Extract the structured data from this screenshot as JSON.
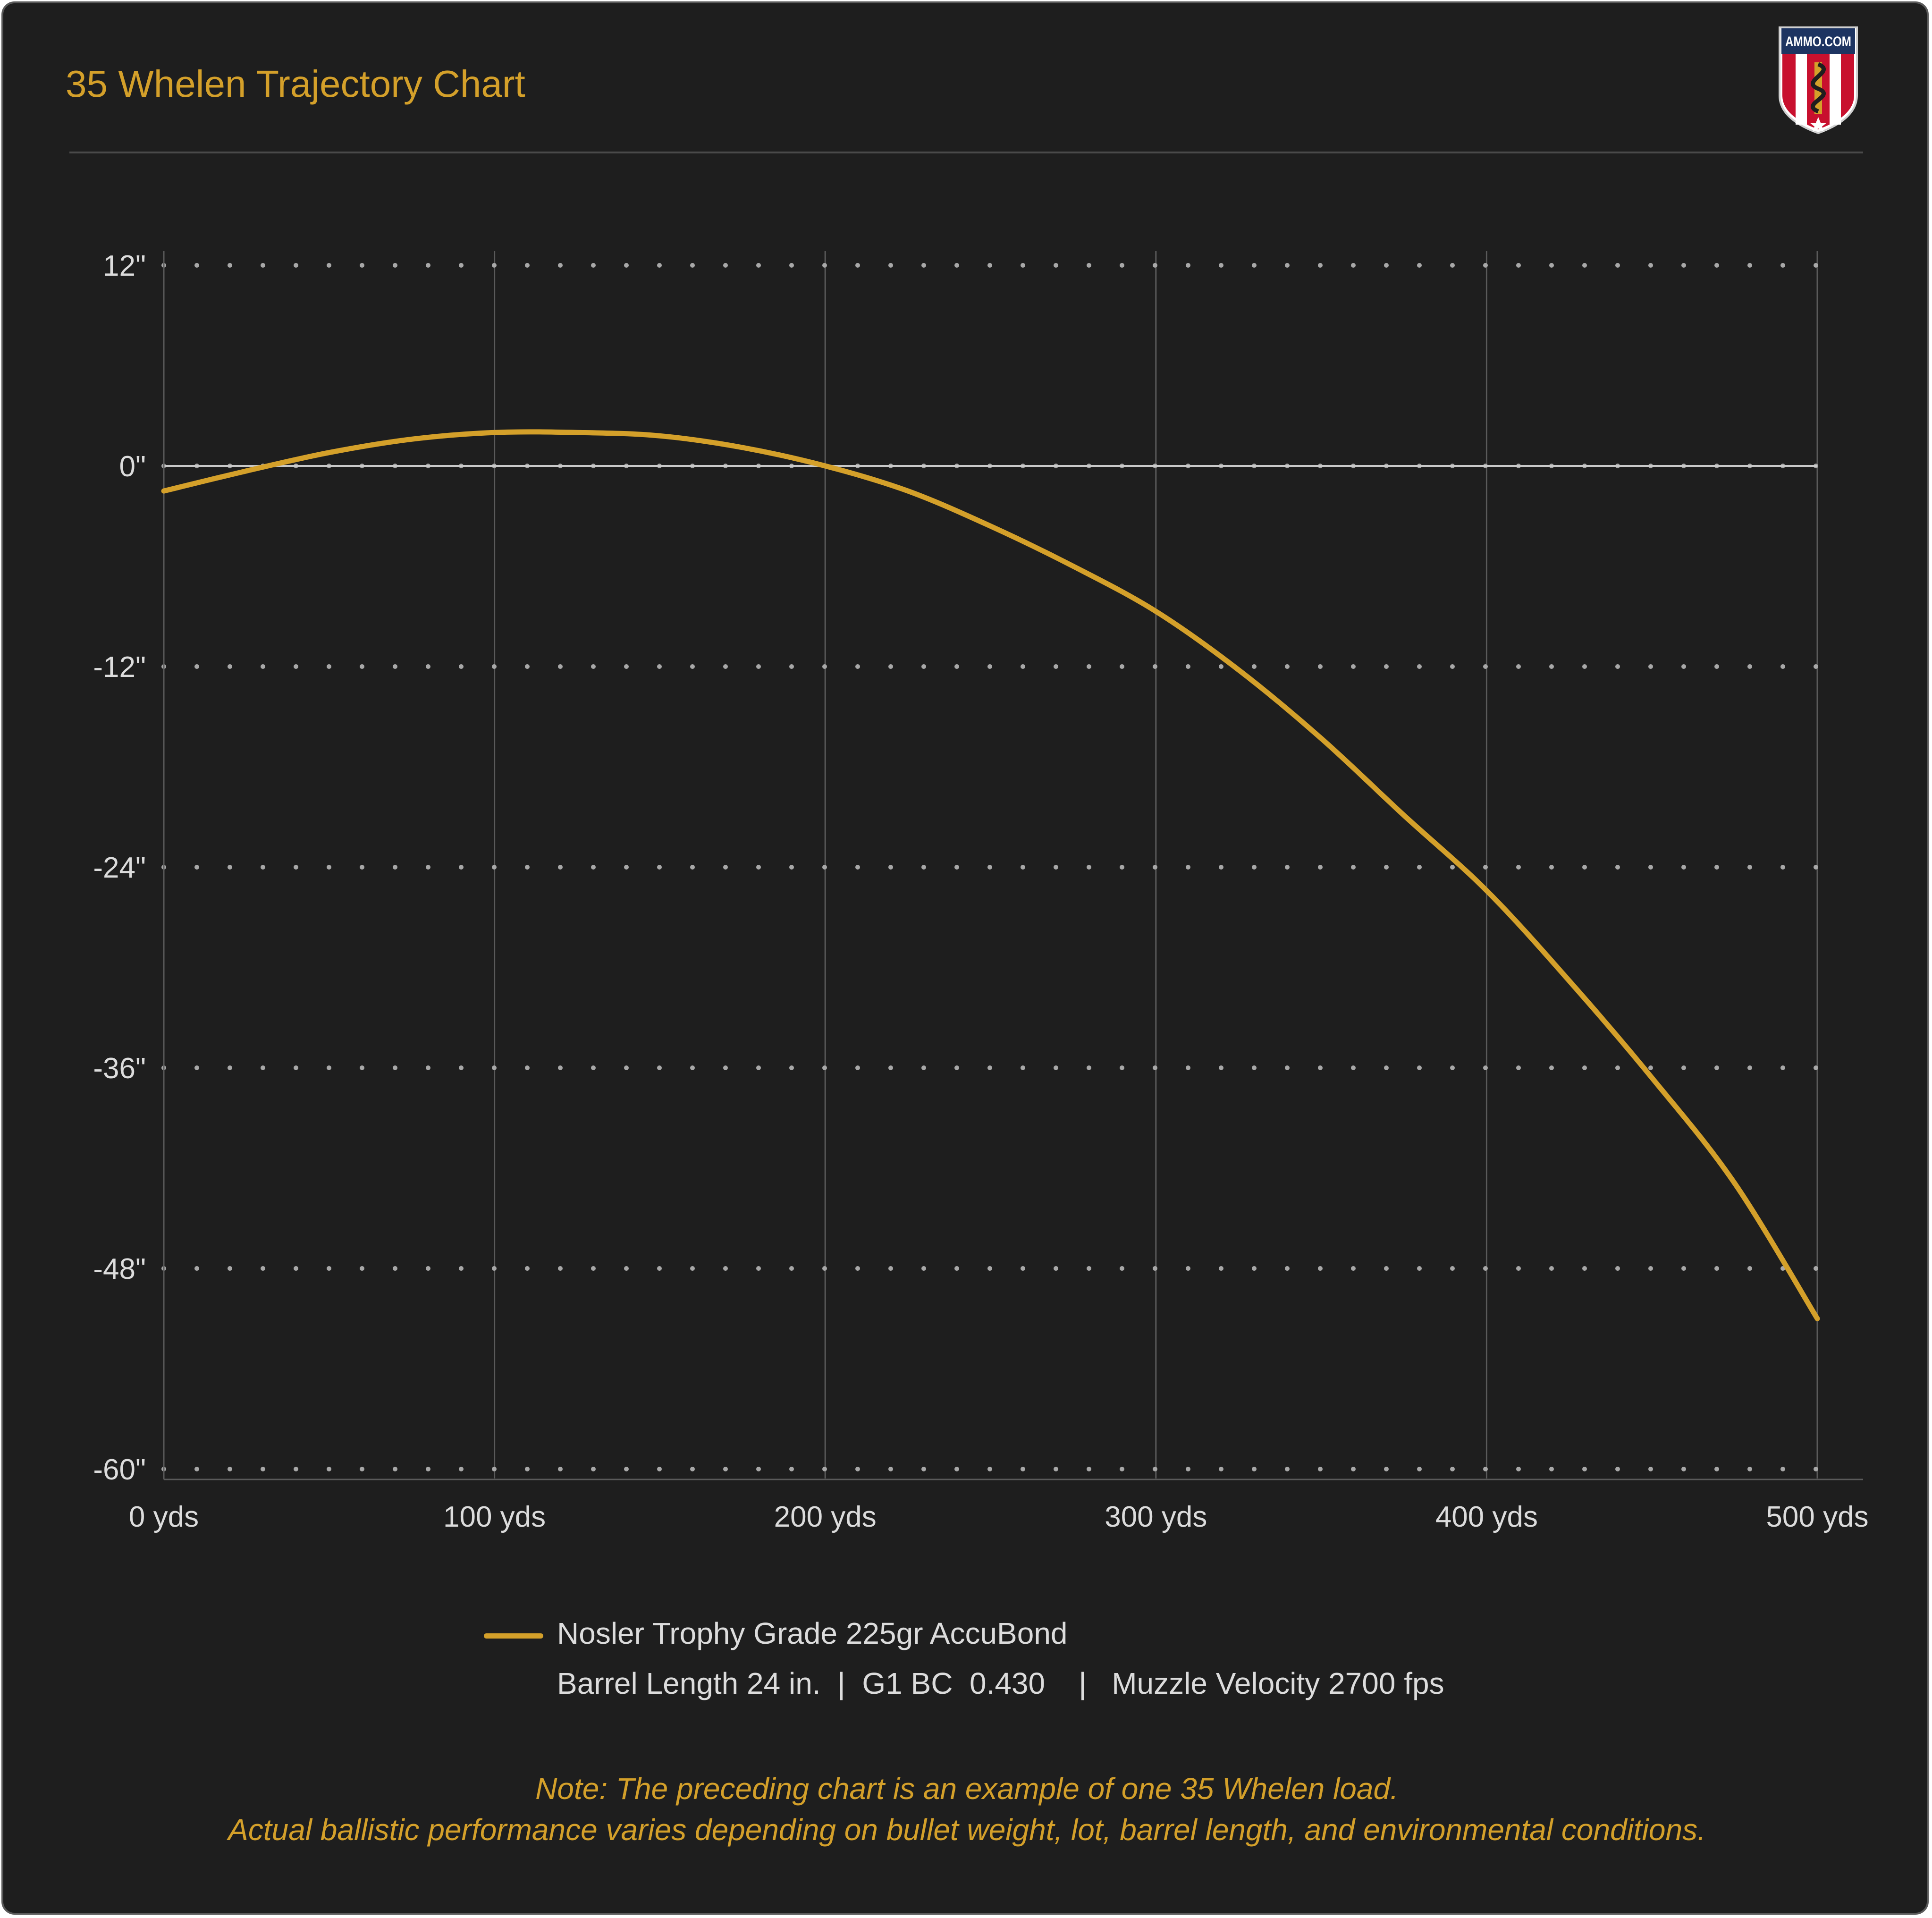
{
  "header": {
    "title": "35 Whelen Trajectory Chart",
    "logo_text": "AMMO.COM"
  },
  "colors": {
    "background": "#1e1e1e",
    "accent": "#d4a02a",
    "text": "#dcdcdc",
    "grid": "#5a5a5a"
  },
  "chart_data": {
    "type": "line",
    "title": "35 Whelen Trajectory Chart",
    "xlabel": "",
    "ylabel": "",
    "xlim": [
      0,
      500
    ],
    "ylim": [
      -60,
      12
    ],
    "x_ticks": [
      0,
      100,
      200,
      300,
      400,
      500
    ],
    "x_tick_labels": [
      "0 yds",
      "100 yds",
      "200 yds",
      "300 yds",
      "400 yds",
      "500 yds"
    ],
    "y_ticks": [
      12,
      0,
      -12,
      -24,
      -36,
      -48,
      -60
    ],
    "y_tick_labels": [
      "12\"",
      "0\"",
      "-12\"",
      "-24\"",
      "-36\"",
      "-48\"",
      "-60\""
    ],
    "grid": "vertical solid lines at x ticks, dotted horizontal lines at y ticks",
    "legend_position": "bottom",
    "series": [
      {
        "name": "Nosler Trophy Grade 225gr AccuBond",
        "color": "#d4a02a",
        "x": [
          0,
          25,
          50,
          75,
          100,
          125,
          150,
          175,
          200,
          225,
          250,
          275,
          300,
          325,
          350,
          375,
          400,
          425,
          450,
          475,
          500
        ],
        "y": [
          -1.5,
          -0.3,
          0.8,
          1.6,
          2.0,
          2.0,
          1.8,
          1.1,
          0.0,
          -1.5,
          -3.6,
          -6.0,
          -8.7,
          -12.2,
          -16.3,
          -20.9,
          -25.4,
          -30.8,
          -36.6,
          -42.9,
          -51.0
        ]
      }
    ]
  },
  "legend": {
    "name": "Nosler Trophy Grade 225gr AccuBond",
    "specs": "Barrel Length 24 in.  |  G1 BC  0.430    |   Muzzle Velocity 2700 fps"
  },
  "note": {
    "line1": "Note: The preceding chart is an example of one 35 Whelen load.",
    "line2": "Actual ballistic performance varies depending on bullet weight, lot, barrel length, and environmental conditions."
  }
}
